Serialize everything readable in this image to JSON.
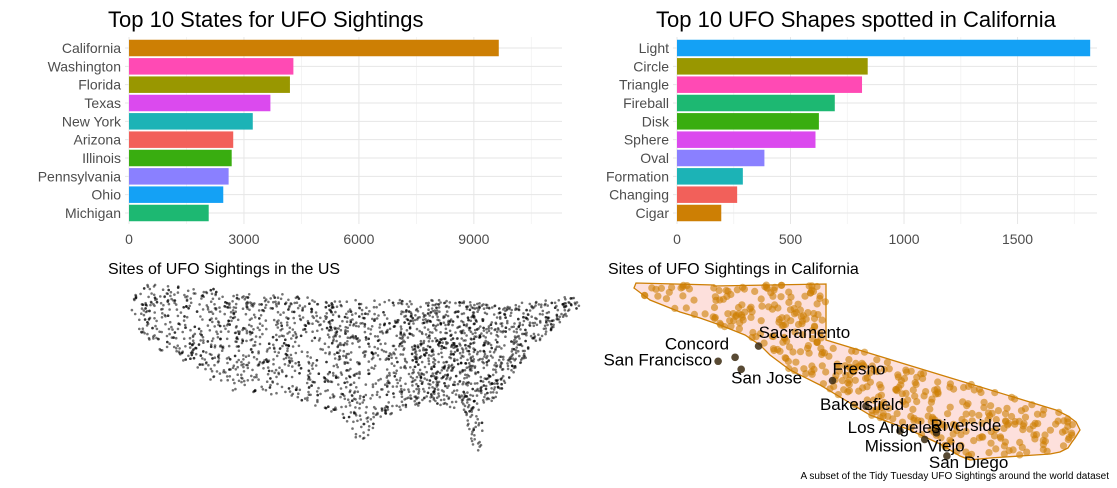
{
  "chart_data": [
    {
      "type": "bar",
      "orientation": "horizontal",
      "title": "Top 10 States for UFO Sightings",
      "categories": [
        "California",
        "Washington",
        "Florida",
        "Texas",
        "New York",
        "Arizona",
        "Illinois",
        "Pennsylvania",
        "Ohio",
        "Michigan"
      ],
      "values": [
        9650,
        4290,
        4200,
        3690,
        3230,
        2720,
        2680,
        2600,
        2460,
        2080
      ],
      "colors": [
        "#CD7F04",
        "#FF4AB4",
        "#999700",
        "#DB4AEE",
        "#1CB3B6",
        "#F2605A",
        "#39AD10",
        "#8A80FF",
        "#14A1F5",
        "#1DB872"
      ],
      "xticks": [
        0,
        3000,
        6000,
        9000
      ],
      "xtick_labels": [
        "0",
        "3000",
        "6000",
        "9000"
      ],
      "xlim": [
        0,
        11300
      ],
      "grid": true
    },
    {
      "type": "bar",
      "orientation": "horizontal",
      "title": "Top 10 UFO Shapes spotted in California",
      "categories": [
        "Light",
        "Circle",
        "Triangle",
        "Fireball",
        "Disk",
        "Sphere",
        "Oval",
        "Formation",
        "Changing",
        "Cigar"
      ],
      "values": [
        1820,
        840,
        815,
        695,
        625,
        610,
        385,
        290,
        265,
        195
      ],
      "colors": [
        "#14A1F5",
        "#999700",
        "#FF4AB4",
        "#1DB872",
        "#39AD10",
        "#DB4AEE",
        "#8A80FF",
        "#1CB3B6",
        "#F2605A",
        "#CD7F04"
      ],
      "xticks": [
        0,
        500,
        1000,
        1500
      ],
      "xtick_labels": [
        "0",
        "500",
        "1000",
        "1500"
      ],
      "xlim": [
        0,
        1850
      ],
      "grid": true
    },
    {
      "type": "scatter",
      "title": "Sites of UFO Sightings in the US",
      "point_color": "#000000"
    },
    {
      "type": "scatter",
      "title": "Sites of UFO Sightings in California",
      "point_color": "#CD7F04",
      "region_fill": "#FDE0DC",
      "cities": [
        {
          "name": "Sacramento",
          "lon": -121.49,
          "lat": 38.58
        },
        {
          "name": "Concord",
          "lon": -122.03,
          "lat": 37.98
        },
        {
          "name": "San Francisco",
          "lon": -122.42,
          "lat": 37.77
        },
        {
          "name": "San Jose",
          "lon": -121.89,
          "lat": 37.34
        },
        {
          "name": "Fresno",
          "lon": -119.79,
          "lat": 36.74
        },
        {
          "name": "Bakersfield",
          "lon": -119.02,
          "lat": 35.37
        },
        {
          "name": "Los Angeles",
          "lon": -118.24,
          "lat": 34.05
        },
        {
          "name": "Riverside",
          "lon": -117.4,
          "lat": 33.95
        },
        {
          "name": "Mission Viejo",
          "lon": -117.67,
          "lat": 33.6
        },
        {
          "name": "San Diego",
          "lon": -117.16,
          "lat": 32.72
        }
      ]
    }
  ],
  "caption": "A subset of the Tidy Tuesday UFO Sightings around the world dataset"
}
